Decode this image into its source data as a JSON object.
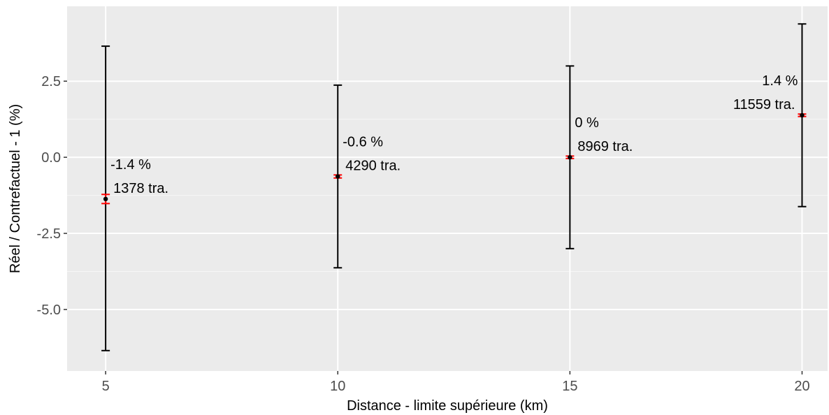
{
  "chart_data": {
    "type": "scatter",
    "xlabel": "Distance - limite supérieure (km)",
    "ylabel": "Réel / Contrefactuel - 1 (%)",
    "x_ticks": [
      5,
      10,
      15,
      20
    ],
    "x_tick_labels": [
      "5",
      "10",
      "15",
      "20"
    ],
    "y_ticks": [
      -5.0,
      -2.5,
      0.0,
      2.5
    ],
    "y_tick_labels": [
      "-5.0",
      "-2.5",
      "0.0",
      "2.5"
    ],
    "xlim": [
      4.17,
      20.55
    ],
    "ylim": [
      -7.02,
      4.96
    ],
    "grid": true,
    "points": [
      {
        "x": 5,
        "y": -1.37,
        "ci_low": -6.35,
        "ci_high": 3.65,
        "se_low": -1.52,
        "se_high": -1.22,
        "pct_label": "-1.4 %",
        "n_label": "1378 tra."
      },
      {
        "x": 10,
        "y": -0.63,
        "ci_low": -3.63,
        "ci_high": 2.37,
        "se_low": -0.68,
        "se_high": -0.58,
        "pct_label": "-0.6 %",
        "n_label": "4290 tra."
      },
      {
        "x": 15,
        "y": 0.0,
        "ci_low": -3.0,
        "ci_high": 3.0,
        "se_low": -0.04,
        "se_high": 0.04,
        "pct_label": "0 %",
        "n_label": "8969 tra."
      },
      {
        "x": 20,
        "y": 1.38,
        "ci_low": -1.62,
        "ci_high": 4.38,
        "se_low": 1.34,
        "se_high": 1.42,
        "pct_label": "1.4 %",
        "n_label": "11559 tra."
      }
    ],
    "colors": {
      "panel": "#ebebeb",
      "grid": "#ffffff",
      "errorbar": "#000000",
      "inner_errorbar": "#ff0000",
      "point": "#000000"
    }
  }
}
